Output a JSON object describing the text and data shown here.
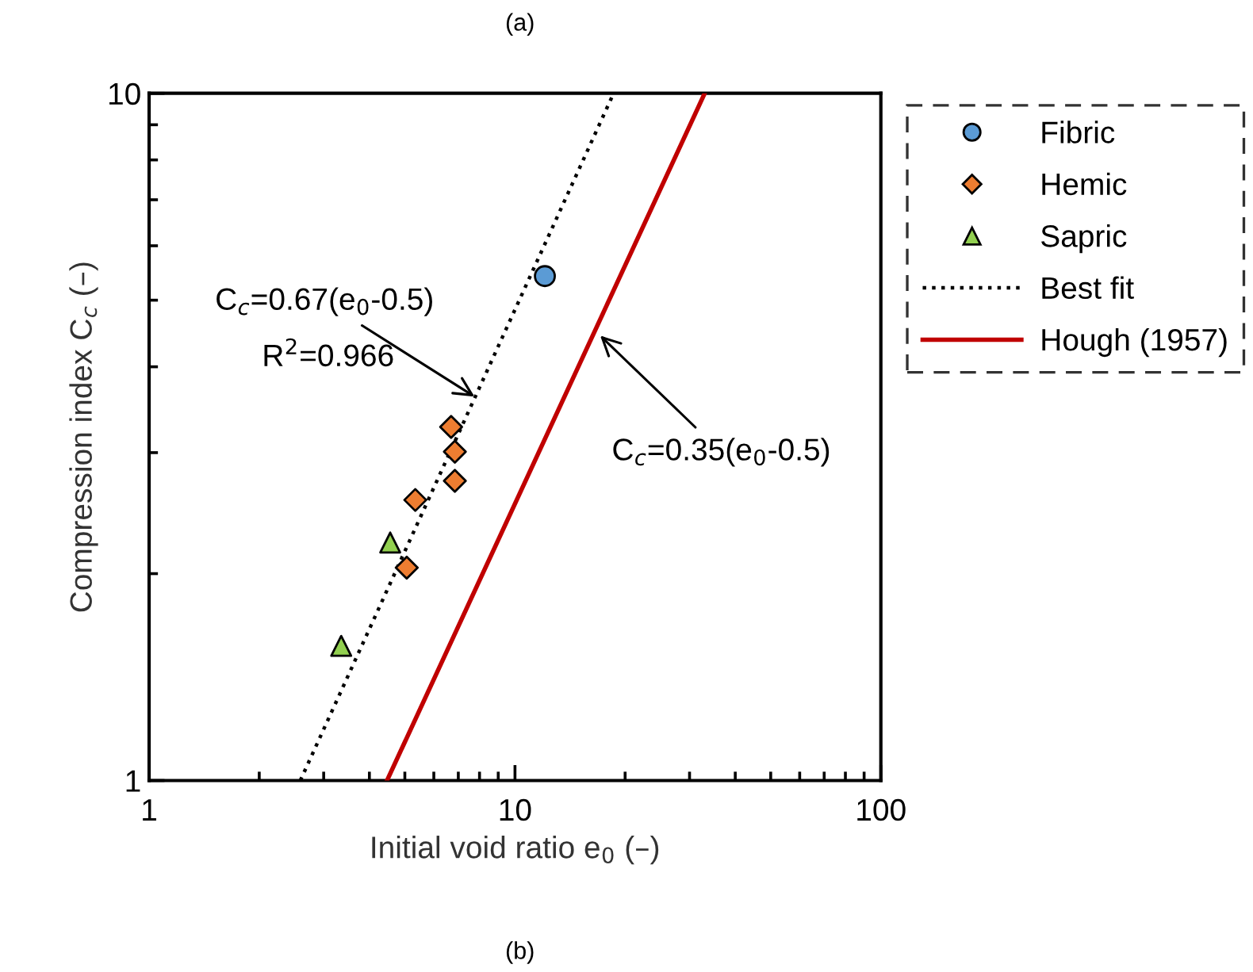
{
  "chart_data": {
    "type": "scatter",
    "xlabel": "Initial void ratio e$_{0}$ (–)",
    "ylabel": "Compression index C$_{c}$ (–)",
    "log": "xy",
    "xlim": [
      1,
      100
    ],
    "ylim": [
      1,
      10
    ],
    "xticks": [
      1,
      10,
      100
    ],
    "yticks": [
      1,
      10
    ],
    "grid": false,
    "legend": "right",
    "series": [
      {
        "name": "Fibric",
        "color": "#5b9bd5",
        "marker": "circle",
        "x": [
          12.07
        ],
        "values": [
          5.42
        ]
      },
      {
        "name": "Hemic",
        "color": "#ed7d31",
        "marker": "diamond",
        "x": [
          6.69,
          6.85,
          6.85,
          5.34,
          5.06
        ],
        "values": [
          3.27,
          3.01,
          2.73,
          2.56,
          2.04
        ]
      },
      {
        "name": "Sapric",
        "color": "#92d050",
        "marker": "triangle",
        "x": [
          4.56,
          3.35
        ],
        "values": [
          2.22,
          1.57
        ]
      },
      {
        "name": "Best fit",
        "type": "line",
        "color": "#000000",
        "line_style": "dotted",
        "marker": "none",
        "x": [
          2.59,
          18.6
        ],
        "values": [
          1,
          10
        ]
      },
      {
        "name": "Hough (1957)",
        "type": "line",
        "color": "#c00000",
        "line_style": "solid",
        "marker": "none",
        "x": [
          4.47,
          33
        ],
        "values": [
          1,
          10
        ]
      }
    ],
    "annotations": [
      "(a)",
      "(b)",
      "R$^{2}$=0.966",
      {
        "text": "C$_{c}$=0.67(e$_{0}$-0.5)",
        "x": 7.75,
        "y": 3.62
      },
      {
        "text": "C$_{c}$=0.35(e$_{0}$-0.5)",
        "x": 17.1,
        "y": 4.44
      }
    ]
  }
}
